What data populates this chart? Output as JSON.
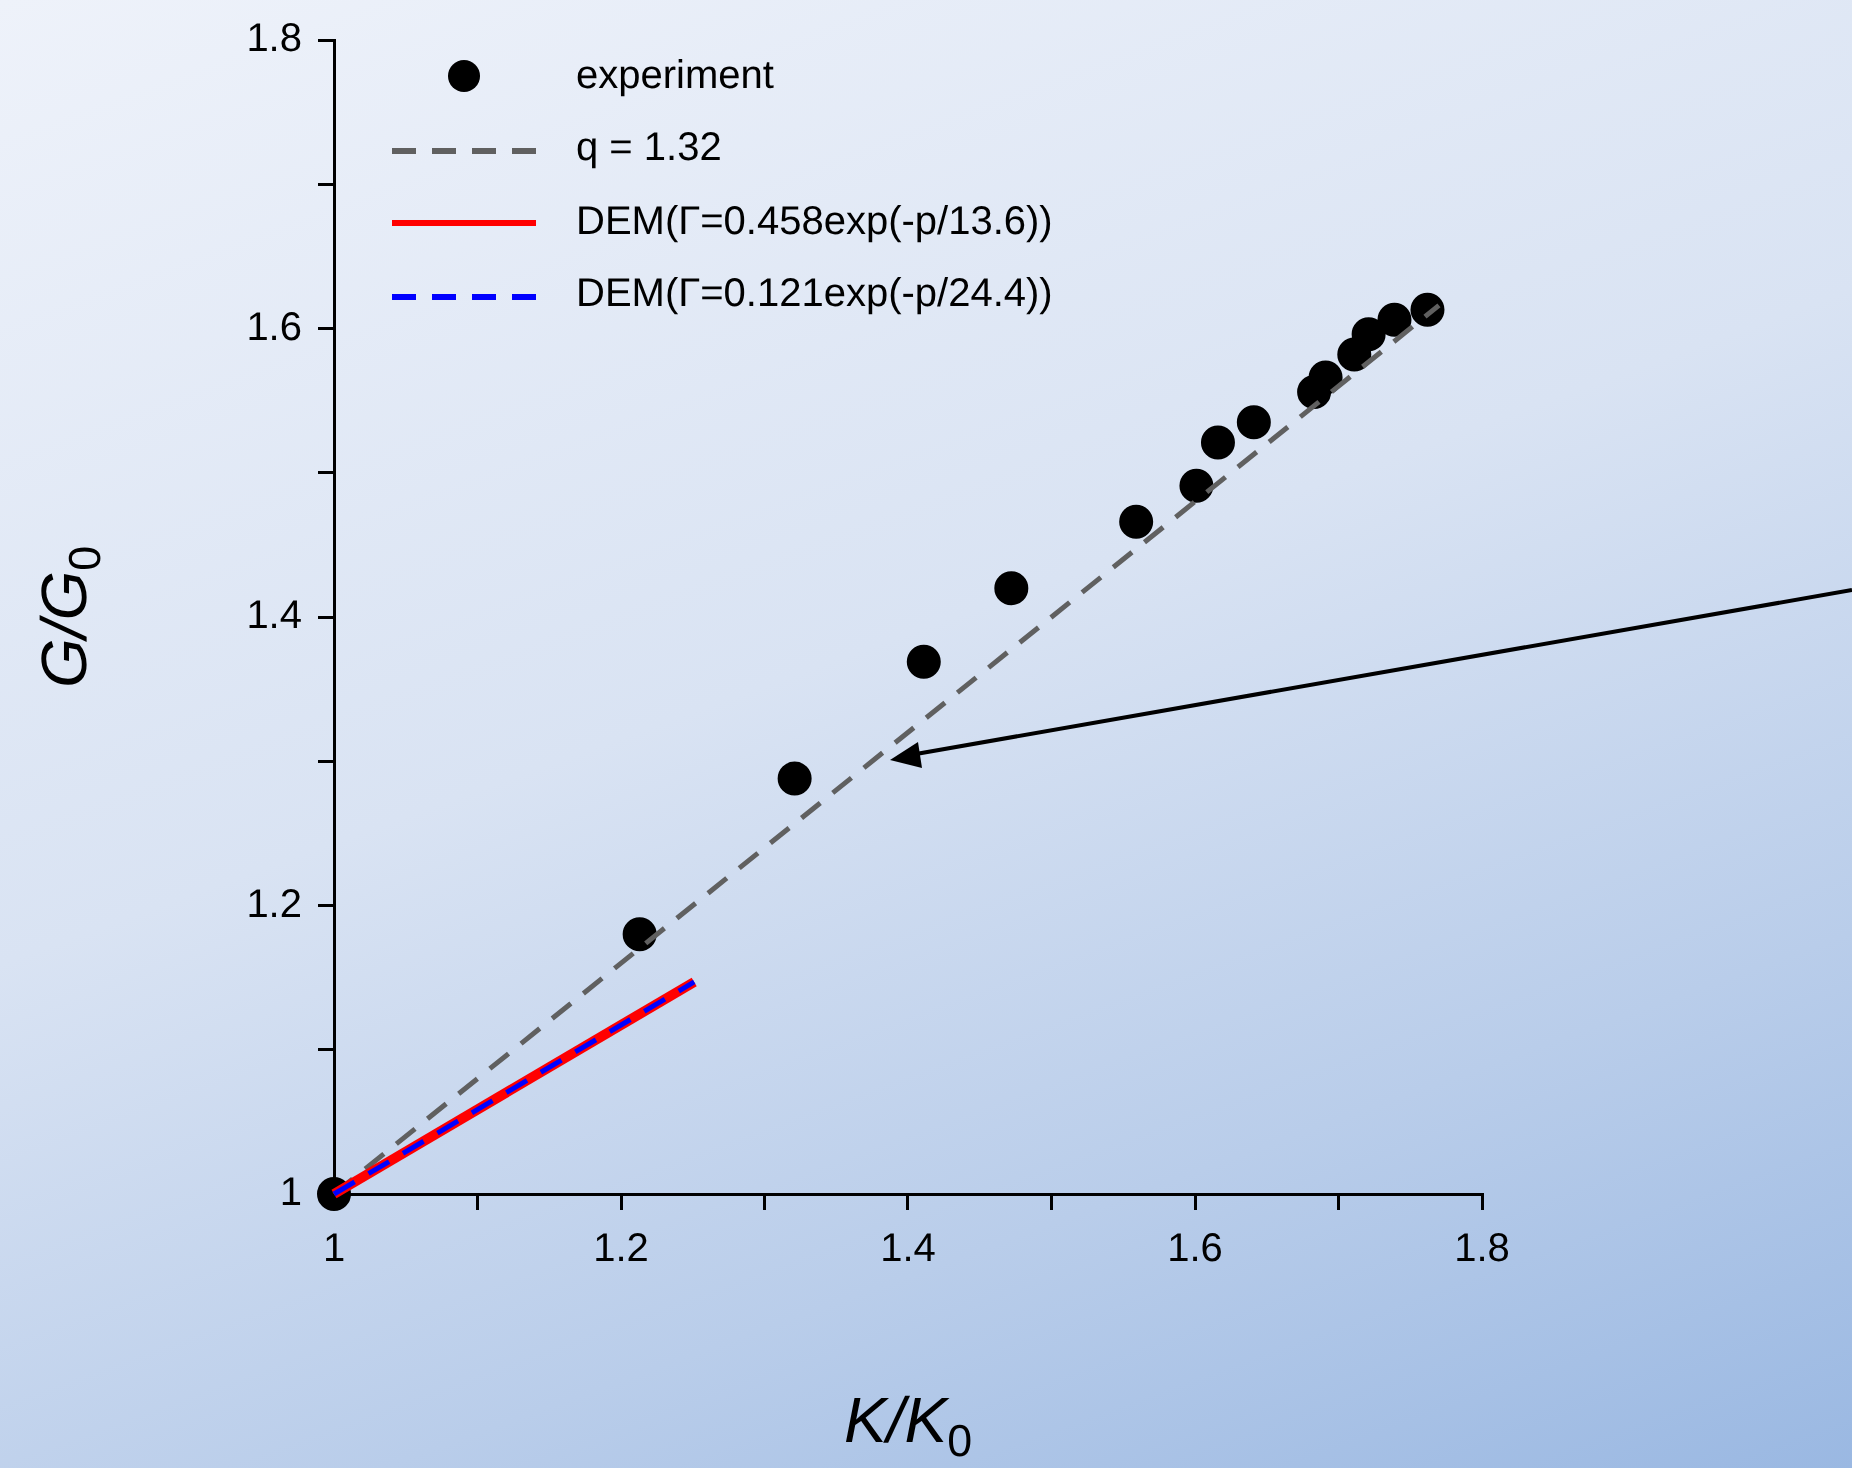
{
  "chart_data": {
    "type": "scatter",
    "xlabel": "K/K$_{0}$",
    "ylabel": "G/G$_{0}$",
    "xlim": [
      1,
      1.8
    ],
    "ylim": [
      1,
      1.8
    ],
    "xticks": [
      1,
      {
        "value": 1.1,
        "label": null
      },
      1.2,
      {
        "value": 1.3,
        "label": null
      },
      1.4,
      {
        "value": 1.5,
        "label": null
      },
      1.6,
      {
        "value": 1.7,
        "label": null
      },
      1.8
    ],
    "yticks": [
      1,
      {
        "value": 1.1,
        "label": null
      },
      1.2,
      {
        "value": 1.3,
        "label": null
      },
      1.4,
      {
        "value": 1.5,
        "label": null
      },
      1.6,
      {
        "value": 1.7,
        "label": null
      },
      1.8
    ],
    "grid": false,
    "legend": "top left",
    "series": [
      {
        "name": "experiment",
        "type": "scatter",
        "color": "#000000",
        "marker": "circle",
        "x": [
          1,
          1.213,
          1.321,
          1.411,
          1.472,
          1.559,
          1.601,
          1.616,
          1.641,
          1.683,
          1.691,
          1.711,
          1.721,
          1.739,
          1.762
        ],
        "values": [
          1,
          1.18,
          1.288,
          1.369,
          1.42,
          1.466,
          1.491,
          1.521,
          1.535,
          1.556,
          1.566,
          1.582,
          1.596,
          1.606,
          1.613
        ]
      },
      {
        "name": "q = 1.32",
        "type": "line",
        "color": "#606060",
        "marker": "none",
        "line_style": "dashed",
        "x": [
          1,
          1.77
        ],
        "values": [
          1,
          1.616
        ]
      },
      {
        "name": "DEM(Γ=0.458exp(-p/13.6))",
        "type": "line",
        "color": "#ff0000",
        "marker": "none",
        "line_style": "solid",
        "x": [
          1,
          1.251
        ],
        "values": [
          1,
          1.147
        ]
      },
      {
        "name": "DEM(Γ=0.121exp(-p/24.4))",
        "type": "line",
        "color": "#0000ff",
        "marker": "none",
        "line_style": "dashed",
        "x": [
          1,
          1.251
        ],
        "values": [
          1,
          1.147
        ]
      }
    ]
  }
}
